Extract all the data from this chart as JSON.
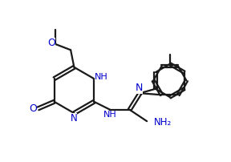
{
  "bg_color": "#ffffff",
  "line_color": "#1a1a1a",
  "heteroatom_color": "#0000cc",
  "bond_width": 1.6,
  "figsize": [
    2.88,
    2.02
  ],
  "dpi": 100,
  "xlim": [
    0,
    10
  ],
  "ylim": [
    0,
    7
  ]
}
